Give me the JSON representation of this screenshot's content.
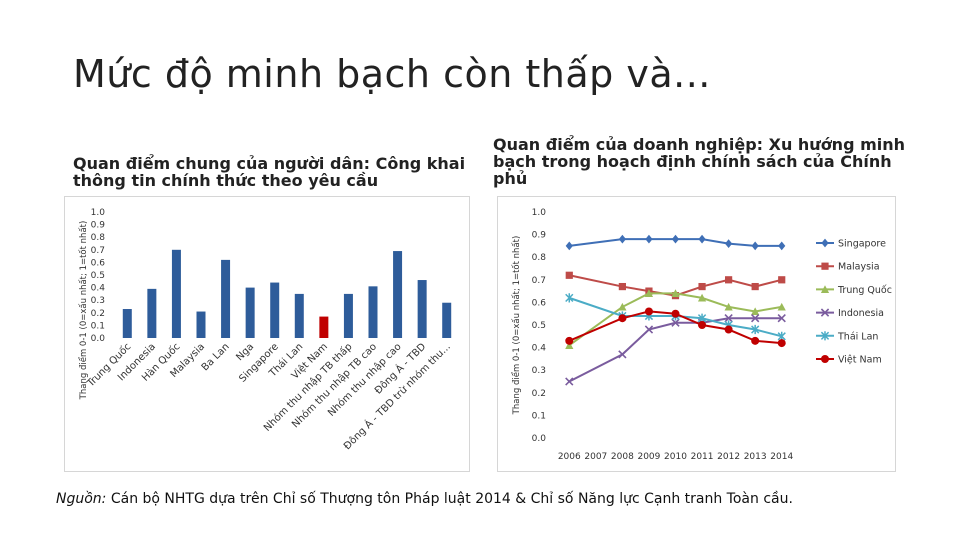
{
  "slide": {
    "title": "Mức độ minh bạch còn thấp và...",
    "left_heading": "Quan điểm chung của người dân: Công khai thông tin chính thức theo yêu cầu",
    "right_heading": "Quan điểm của doanh nghiệp: Xu hướng minh bạch trong hoạch định chính sách của Chính phủ",
    "source_label": "Nguồn:",
    "source_text": " Cán bộ NHTG dựa trên Chỉ số Thượng tôn Pháp luật 2014 & Chỉ số Năng lực Cạnh tranh Toàn cầu."
  },
  "colors": {
    "bar": "#2e5c9a",
    "bar_highlight": "#c00000",
    "singapore": "#3f6fb6",
    "malaysia": "#be4b48",
    "trung_quoc": "#9bbb59",
    "indonesia": "#7a5c9e",
    "thai_lan": "#4bacc6",
    "viet_nam": "#c00000"
  },
  "chart_data": [
    {
      "type": "bar",
      "ylabel": "Thang điểm 0-1 (0=xấu nhất; 1=tốt nhất)",
      "ylim": [
        0,
        1.0
      ],
      "yticks": [
        "0.0",
        "0.1",
        "0.2",
        "0.3",
        "0.4",
        "0.5",
        "0.6",
        "0.7",
        "0.8",
        "0.9",
        "1.0"
      ],
      "categories": [
        "Trung Quốc",
        "Indonesia",
        "Hàn Quốc",
        "Malaysia",
        "Ba Lan",
        "Nga",
        "Singapore",
        "Thái Lan",
        "Việt Nam",
        "Nhóm thu nhập TB thấp",
        "Nhóm thu nhập TB cao",
        "Nhóm thu nhập cao",
        "Đông Á - TBD",
        "Đông Á - TBD trừ nhóm thu..."
      ],
      "values": [
        0.23,
        0.39,
        0.7,
        0.21,
        0.62,
        0.4,
        0.44,
        0.35,
        0.17,
        0.35,
        0.41,
        0.69,
        0.46,
        0.28
      ],
      "highlight": "Việt Nam",
      "grid": false
    },
    {
      "type": "line",
      "ylabel": "Thang điểm 0-1 (0=xấu nhất; 1=tốt nhất)",
      "ylim": [
        0,
        1.0
      ],
      "yticks": [
        "0.0",
        "0.1",
        "0.2",
        "0.3",
        "0.4",
        "0.5",
        "0.6",
        "0.7",
        "0.8",
        "0.9",
        "1.0"
      ],
      "x": [
        "2006",
        "2007",
        "2008",
        "2009",
        "2010",
        "2011",
        "2012",
        "2013",
        "2014"
      ],
      "legend_position": "right",
      "grid": false,
      "series": [
        {
          "name": "Singapore",
          "color_key": "singapore",
          "marker": "diamond",
          "points": [
            [
              "2006",
              0.85
            ],
            [
              "2008",
              0.88
            ],
            [
              "2009",
              0.88
            ],
            [
              "2010",
              0.88
            ],
            [
              "2011",
              0.88
            ],
            [
              "2012",
              0.86
            ],
            [
              "2013",
              0.85
            ],
            [
              "2014",
              0.85
            ]
          ]
        },
        {
          "name": "Malaysia",
          "color_key": "malaysia",
          "marker": "square",
          "points": [
            [
              "2006",
              0.72
            ],
            [
              "2008",
              0.67
            ],
            [
              "2009",
              0.65
            ],
            [
              "2010",
              0.63
            ],
            [
              "2011",
              0.67
            ],
            [
              "2012",
              0.7
            ],
            [
              "2013",
              0.67
            ],
            [
              "2014",
              0.7
            ]
          ]
        },
        {
          "name": "Trung Quốc",
          "color_key": "trung_quoc",
          "marker": "triangle",
          "points": [
            [
              "2006",
              0.41
            ],
            [
              "2008",
              0.58
            ],
            [
              "2009",
              0.64
            ],
            [
              "2010",
              0.64
            ],
            [
              "2011",
              0.62
            ],
            [
              "2012",
              0.58
            ],
            [
              "2013",
              0.56
            ],
            [
              "2014",
              0.58
            ]
          ]
        },
        {
          "name": "Indonesia",
          "color_key": "indonesia",
          "marker": "x",
          "points": [
            [
              "2006",
              0.25
            ],
            [
              "2008",
              0.37
            ],
            [
              "2009",
              0.48
            ],
            [
              "2010",
              0.51
            ],
            [
              "2011",
              0.51
            ],
            [
              "2012",
              0.53
            ],
            [
              "2013",
              0.53
            ],
            [
              "2014",
              0.53
            ]
          ]
        },
        {
          "name": "Thái Lan",
          "color_key": "thai_lan",
          "marker": "star",
          "points": [
            [
              "2006",
              0.62
            ],
            [
              "2008",
              0.54
            ],
            [
              "2009",
              0.54
            ],
            [
              "2010",
              0.54
            ],
            [
              "2011",
              0.53
            ],
            [
              "2012",
              0.5
            ],
            [
              "2013",
              0.48
            ],
            [
              "2014",
              0.45
            ]
          ]
        },
        {
          "name": "Việt Nam",
          "color_key": "viet_nam",
          "marker": "circle",
          "points": [
            [
              "2006",
              0.43
            ],
            [
              "2008",
              0.53
            ],
            [
              "2009",
              0.56
            ],
            [
              "2010",
              0.55
            ],
            [
              "2011",
              0.5
            ],
            [
              "2012",
              0.48
            ],
            [
              "2013",
              0.43
            ],
            [
              "2014",
              0.42
            ]
          ]
        }
      ]
    }
  ]
}
